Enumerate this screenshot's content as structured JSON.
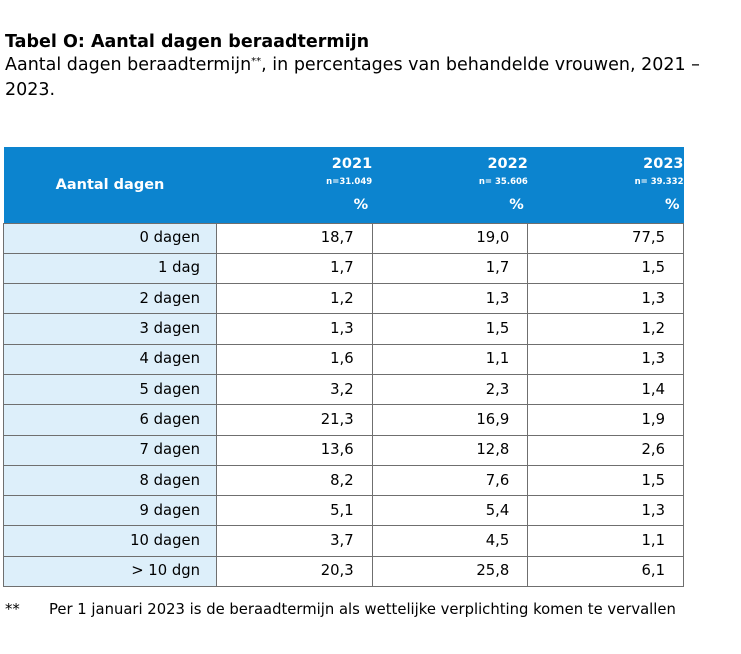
{
  "title": "Tabel O: Aantal dagen beraadtermijn",
  "subtitle_main": "Aantal dagen beraadtermijn",
  "subtitle_mark": "**",
  "subtitle_rest": ", in percentages van behandelde vrouwen, 2021 – 2023.",
  "table": {
    "row_header": "Aantal dagen",
    "columns": [
      {
        "year": "2021",
        "n": "n=31.049",
        "unit": "%"
      },
      {
        "year": "2022",
        "n": "n= 35.606",
        "unit": "%"
      },
      {
        "year": "2023",
        "n": "n= 39.332",
        "unit": "%"
      }
    ],
    "rows": [
      {
        "label": "0 dagen",
        "values": [
          "18,7",
          "19,0",
          "77,5"
        ]
      },
      {
        "label": "1 dag",
        "values": [
          "1,7",
          "1,7",
          "1,5"
        ]
      },
      {
        "label": "2 dagen",
        "values": [
          "1,2",
          "1,3",
          "1,3"
        ]
      },
      {
        "label": "3 dagen",
        "values": [
          "1,3",
          "1,5",
          "1,2"
        ]
      },
      {
        "label": "4 dagen",
        "values": [
          "1,6",
          "1,1",
          "1,3"
        ]
      },
      {
        "label": "5 dagen",
        "values": [
          "3,2",
          "2,3",
          "1,4"
        ]
      },
      {
        "label": "6 dagen",
        "values": [
          "21,3",
          "16,9",
          "1,9"
        ]
      },
      {
        "label": "7 dagen",
        "values": [
          "13,6",
          "12,8",
          "2,6"
        ]
      },
      {
        "label": "8 dagen",
        "values": [
          "8,2",
          "7,6",
          "1,5"
        ]
      },
      {
        "label": "9 dagen",
        "values": [
          "5,1",
          "5,4",
          "1,3"
        ]
      },
      {
        "label": "10 dagen",
        "values": [
          "3,7",
          "4,5",
          "1,1"
        ]
      },
      {
        "label": "> 10 dgn",
        "values": [
          "20,3",
          "25,8",
          "6,1"
        ]
      }
    ]
  },
  "footnote": {
    "mark": "**",
    "text": "Per 1 januari 2023 is de beraadtermijn als wettelijke verplichting komen te vervallen"
  },
  "colors": {
    "header_bg": "#0c84cf",
    "label_bg": "#ddeffa",
    "border": "#6f6f6f"
  }
}
